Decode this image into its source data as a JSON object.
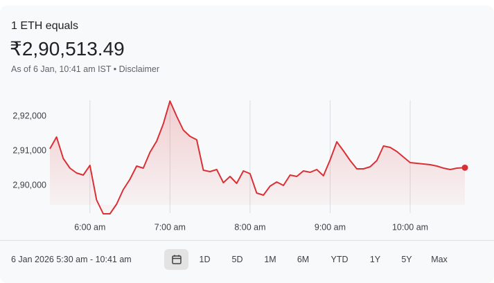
{
  "header": {
    "title": "1 ETH equals",
    "price": "₹2,90,513.49",
    "as_of": "As of 6 Jan, 10:41 am IST",
    "separator": "•",
    "disclaimer": "Disclaimer"
  },
  "chart_data": {
    "type": "line",
    "color": "#d93035",
    "x": [
      "5:30 am",
      "5:35 am",
      "5:40 am",
      "5:45 am",
      "5:50 am",
      "5:55 am",
      "6:00 am",
      "6:05 am",
      "6:10 am",
      "6:15 am",
      "6:20 am",
      "6:25 am",
      "6:30 am",
      "6:35 am",
      "6:40 am",
      "6:45 am",
      "6:50 am",
      "6:55 am",
      "7:00 am",
      "7:05 am",
      "7:10 am",
      "7:15 am",
      "7:20 am",
      "7:25 am",
      "7:30 am",
      "7:35 am",
      "7:40 am",
      "7:45 am",
      "7:50 am",
      "7:55 am",
      "8:00 am",
      "8:05 am",
      "8:10 am",
      "8:15 am",
      "8:20 am",
      "8:25 am",
      "8:30 am",
      "8:35 am",
      "8:40 am",
      "8:45 am",
      "8:50 am",
      "8:55 am",
      "9:00 am",
      "9:05 am",
      "9:10 am",
      "9:15 am",
      "9:20 am",
      "9:25 am",
      "9:30 am",
      "9:35 am",
      "9:40 am",
      "9:45 am",
      "9:50 am",
      "9:55 am",
      "10:00 am",
      "10:05 am",
      "10:10 am",
      "10:15 am",
      "10:20 am",
      "10:25 am",
      "10:30 am",
      "10:35 am",
      "10:41 am"
    ],
    "values": [
      291060,
      291400,
      290780,
      290500,
      290360,
      290300,
      290580,
      289580,
      289180,
      289180,
      289460,
      289880,
      290180,
      290560,
      290500,
      290960,
      291280,
      291780,
      292440,
      292000,
      291600,
      291420,
      291320,
      290440,
      290400,
      290460,
      290080,
      290260,
      290060,
      290420,
      290340,
      289780,
      289720,
      289980,
      290100,
      290000,
      290300,
      290260,
      290420,
      290380,
      290460,
      290280,
      290740,
      291260,
      291000,
      290720,
      290480,
      290480,
      290540,
      290720,
      291140,
      291100,
      290980,
      290820,
      290660,
      290640,
      290620,
      290600,
      290560,
      290500,
      290460,
      290500,
      290513.49
    ],
    "xlim": [
      "5:30 am",
      "10:41 am"
    ],
    "xticks": [
      "6:00 am",
      "7:00 am",
      "8:00 am",
      "9:00 am",
      "10:00 am"
    ],
    "ylim": [
      289100,
      292600
    ],
    "yticks": [
      {
        "value": 290000,
        "label": "2,90,000"
      },
      {
        "value": 291000,
        "label": "2,91,000"
      },
      {
        "value": 292000,
        "label": "2,92,000"
      }
    ]
  },
  "footer": {
    "range": "6 Jan 2026 5:30 am - 10:41 am",
    "periods": [
      "1D",
      "5D",
      "1M",
      "6M",
      "YTD",
      "1Y",
      "5Y",
      "Max"
    ]
  }
}
